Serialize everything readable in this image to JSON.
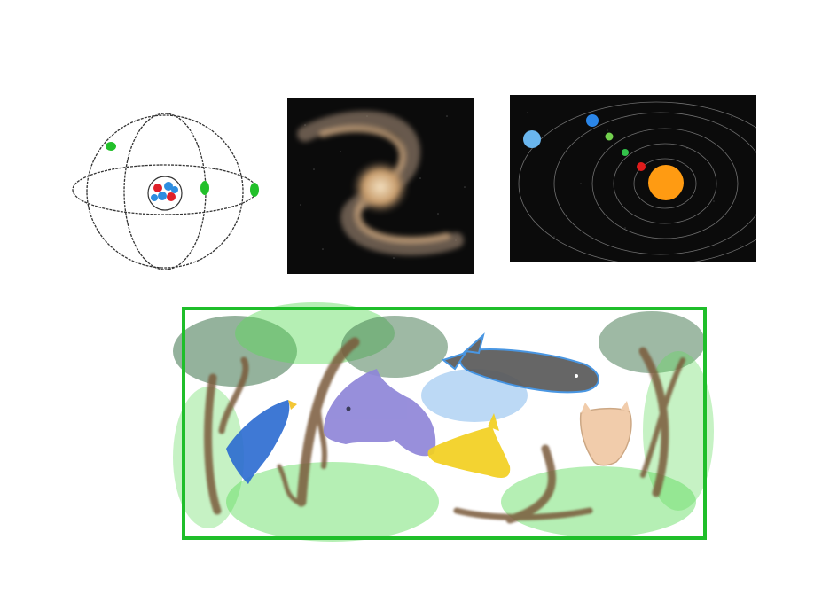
{
  "canvas": {
    "background": "#ffffff"
  },
  "drawings": [
    {
      "id": "atom",
      "icon": "atom-sketch-icon",
      "colors": {
        "orbit": "#333333",
        "electron": "#22c02a",
        "proton": "#e0202a",
        "neutron": "#2d8de0"
      }
    },
    {
      "id": "galaxy",
      "icon": "spiral-galaxy-icon",
      "colors": {
        "space": "#0b0b0b",
        "core": "#d9b58a",
        "arm": "#8f7b6a"
      }
    },
    {
      "id": "solar-system",
      "icon": "solar-system-icon",
      "colors": {
        "space": "#0b0b0b",
        "sun": "#ff9b12",
        "planet_red": "#e01c1c",
        "planet_green": "#33c24a",
        "planet_blue": "#2b86e8",
        "planet_lightblue": "#6ab6ee"
      }
    },
    {
      "id": "forest-scene",
      "icon": "forest-animals-icon",
      "colors": {
        "frame": "#1fbe2a",
        "foliage_light": "#3fd43a",
        "foliage_dark": "#1a5a2a",
        "trunk": "#7a5a3a",
        "bird": "#2a6ad0",
        "dragon": "#8f86d8",
        "whale": "#5a5a5a",
        "fox": "#f2d020",
        "cat": "#f0c8a4",
        "water": "#3a8ee0"
      }
    }
  ]
}
